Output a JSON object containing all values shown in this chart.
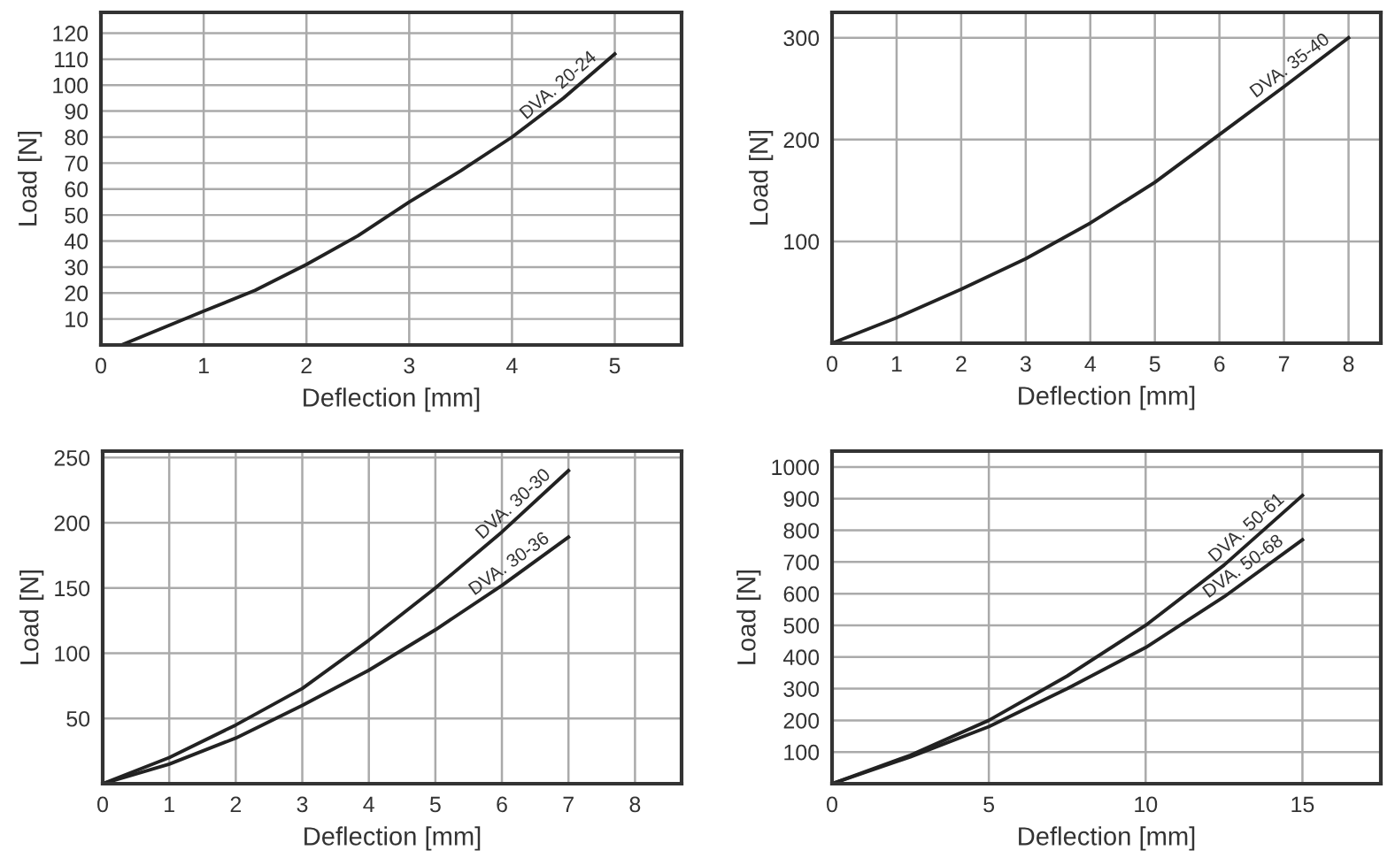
{
  "chart_data": [
    {
      "type": "line",
      "xlabel": "Deflection [mm]",
      "ylabel": "Load [N]",
      "xlim": [
        0,
        5.65
      ],
      "ylim": [
        0,
        128
      ],
      "xticks": [
        0,
        1,
        2,
        3,
        4,
        5
      ],
      "yticks": [
        10,
        20,
        30,
        40,
        50,
        60,
        70,
        80,
        90,
        100,
        110,
        120
      ],
      "grid": true,
      "legend": false,
      "series": [
        {
          "name": "DVA. 20-24",
          "color": "#222222",
          "x": [
            0.2,
            1,
            1.5,
            2,
            2.5,
            3,
            3.5,
            4,
            4.5,
            5
          ],
          "values": [
            0,
            13,
            21,
            31,
            42,
            55,
            67,
            80,
            95,
            112
          ]
        }
      ]
    },
    {
      "type": "line",
      "xlabel": "Deflection [mm]",
      "ylabel": "Load [N]",
      "xlim": [
        0,
        8.5
      ],
      "ylim": [
        0,
        325
      ],
      "xticks": [
        0,
        1,
        2,
        3,
        4,
        5,
        6,
        7,
        8
      ],
      "yticks": [
        100,
        200,
        300
      ],
      "grid": true,
      "legend": false,
      "series": [
        {
          "name": "DVA. 35-40",
          "color": "#222222",
          "x": [
            0,
            1,
            2,
            3,
            4,
            5,
            6,
            7,
            8
          ],
          "values": [
            0,
            25,
            53,
            83,
            118,
            158,
            205,
            252,
            300
          ]
        }
      ]
    },
    {
      "type": "line",
      "xlabel": "Deflection [mm]",
      "ylabel": "Load [N]",
      "xlim": [
        0,
        8.7
      ],
      "ylim": [
        0,
        255
      ],
      "xticks": [
        0,
        1,
        2,
        3,
        4,
        5,
        6,
        7,
        8
      ],
      "yticks": [
        50,
        100,
        150,
        200,
        250
      ],
      "grid": true,
      "legend": false,
      "series": [
        {
          "name": "DVA. 30-30",
          "color": "#222222",
          "x": [
            0,
            1,
            2,
            3,
            4,
            5,
            6,
            7
          ],
          "values": [
            0,
            20,
            45,
            73,
            110,
            150,
            193,
            240
          ]
        },
        {
          "name": "DVA. 30-36",
          "color": "#222222",
          "x": [
            0,
            1,
            2,
            3,
            4,
            5,
            6,
            7
          ],
          "values": [
            0,
            15,
            35,
            60,
            87,
            118,
            152,
            189
          ]
        }
      ]
    },
    {
      "type": "line",
      "xlabel": "Deflection [mm]",
      "ylabel": "Load [N]",
      "xlim": [
        0,
        17.5
      ],
      "ylim": [
        0,
        1050
      ],
      "xticks": [
        0,
        5,
        10,
        15
      ],
      "yticks": [
        100,
        200,
        300,
        400,
        500,
        600,
        700,
        800,
        900,
        1000
      ],
      "grid": true,
      "legend": false,
      "series": [
        {
          "name": "DVA. 50-61",
          "color": "#222222",
          "x": [
            0,
            2.5,
            5,
            7.5,
            10,
            12.5,
            15
          ],
          "values": [
            0,
            90,
            200,
            340,
            500,
            690,
            910
          ]
        },
        {
          "name": "DVA. 50-68",
          "color": "#222222",
          "x": [
            0,
            2.5,
            5,
            7.5,
            10,
            12.5,
            15
          ],
          "values": [
            0,
            85,
            180,
            300,
            430,
            590,
            770
          ]
        }
      ]
    }
  ]
}
